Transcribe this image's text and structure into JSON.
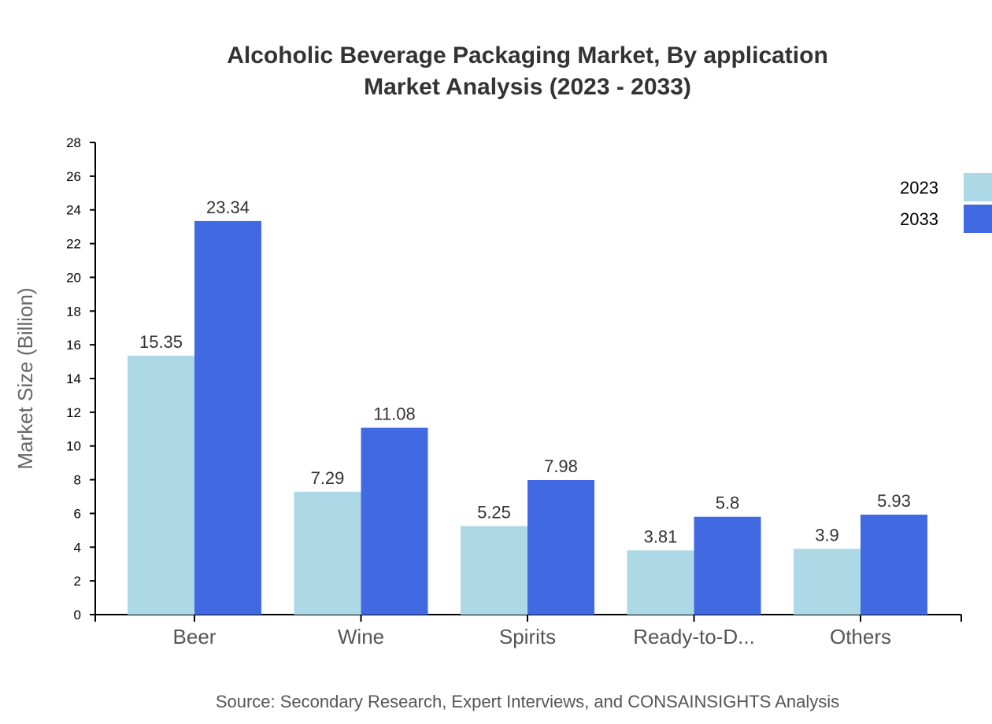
{
  "chart_data": {
    "type": "bar",
    "title": [
      "Alcoholic Beverage Packaging Market, By application",
      "Market Analysis (2023 - 2033)"
    ],
    "xlabel": "",
    "ylabel": "Market Size (Billion)",
    "ylim": [
      0,
      28
    ],
    "yticks": [
      0,
      2,
      4,
      6,
      8,
      10,
      12,
      14,
      16,
      18,
      20,
      22,
      24,
      26,
      28
    ],
    "categories": [
      "Beer",
      "Wine",
      "Spirits",
      "Ready-to-D...",
      "Others"
    ],
    "series": [
      {
        "name": "2023",
        "color": "#ADD8E6",
        "values": [
          15.35,
          7.29,
          5.25,
          3.81,
          3.9
        ]
      },
      {
        "name": "2033",
        "color": "#4169E1",
        "values": [
          23.34,
          11.08,
          7.98,
          5.8,
          5.93
        ]
      }
    ],
    "grid": false,
    "legend": "top-right",
    "source": "Source: Secondary Research, Expert Interviews, and CONSAINSIGHTS Analysis"
  }
}
